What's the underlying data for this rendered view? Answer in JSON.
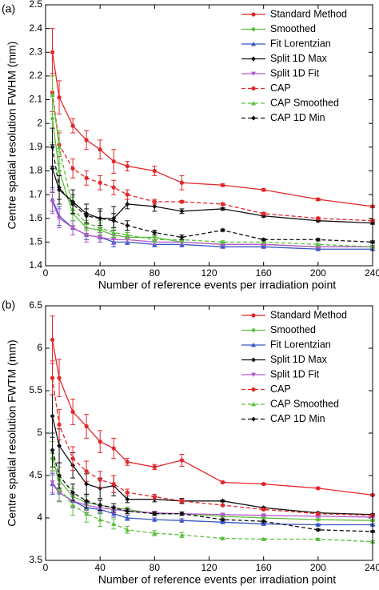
{
  "chart_data": [
    {
      "type": "line",
      "panel_label": "(a)",
      "xlabel": "Number of reference events per irradiation point",
      "ylabel": "Centre spatial resolution FWHM (mm)",
      "x": [
        5,
        10,
        20,
        30,
        40,
        50,
        60,
        80,
        100,
        130,
        160,
        200,
        240
      ],
      "xlim": [
        0,
        240
      ],
      "xticks": [
        0,
        40,
        80,
        120,
        160,
        200,
        240
      ],
      "ylim": [
        1.4,
        2.5
      ],
      "yticks": [
        1.4,
        1.5,
        1.6,
        1.7,
        1.8,
        1.9,
        2,
        2.1,
        2.2,
        2.3,
        2.4,
        2.5
      ],
      "legend": "upper right",
      "series": [
        {
          "name": "Standard Method",
          "color": "#e3262b",
          "dash": false,
          "marker": "circle",
          "values": [
            2.3,
            2.11,
            1.99,
            1.93,
            1.89,
            1.84,
            1.82,
            1.8,
            1.75,
            1.74,
            1.72,
            1.68,
            1.65
          ],
          "errors": [
            0.1,
            0.07,
            0.03,
            0.04,
            0.04,
            0.05,
            0.02,
            0.02,
            0.03,
            0.005,
            0.005,
            0.005,
            0.005
          ]
        },
        {
          "name": "Smoothed",
          "color": "#5cbf3c",
          "dash": false,
          "marker": "diamond",
          "values": [
            2.02,
            1.8,
            1.62,
            1.56,
            1.55,
            1.53,
            1.52,
            1.52,
            1.5,
            1.49,
            1.49,
            1.48,
            1.48
          ],
          "errors": [
            0.1,
            0.08,
            0.05,
            0.03,
            0.03,
            0.02,
            0.02,
            0.02,
            0.01,
            0.005,
            0.005,
            0.005,
            0.005
          ]
        },
        {
          "name": "Fit Lorentzian",
          "color": "#3a55c4",
          "dash": false,
          "marker": "triangle",
          "values": [
            1.68,
            1.61,
            1.56,
            1.53,
            1.52,
            1.5,
            1.5,
            1.49,
            1.49,
            1.48,
            1.48,
            1.47,
            1.47
          ],
          "errors": [
            0.05,
            0.04,
            0.03,
            0.02,
            0.02,
            0.02,
            0.01,
            0.01,
            0.01,
            0.005,
            0.005,
            0.005,
            0.005
          ]
        },
        {
          "name": "Split 1D Max",
          "color": "#111111",
          "dash": false,
          "marker": "diamond",
          "values": [
            1.81,
            1.72,
            1.67,
            1.62,
            1.6,
            1.6,
            1.66,
            1.65,
            1.63,
            1.64,
            1.61,
            1.59,
            1.58
          ],
          "errors": [
            0.1,
            0.06,
            0.05,
            0.04,
            0.04,
            0.05,
            0.02,
            0.02,
            0.01,
            0.005,
            0.005,
            0.005,
            0.005
          ]
        },
        {
          "name": "Split 1D Fit",
          "color": "#b45acd",
          "dash": false,
          "marker": "triangle-down",
          "values": [
            1.67,
            1.6,
            1.56,
            1.53,
            1.52,
            1.51,
            1.51,
            1.5,
            1.5,
            1.49,
            1.49,
            1.48,
            1.48
          ],
          "errors": [
            0.05,
            0.04,
            0.03,
            0.03,
            0.02,
            0.02,
            0.01,
            0.01,
            0.01,
            0.005,
            0.005,
            0.005,
            0.005
          ]
        },
        {
          "name": "CAP",
          "color": "#e3262b",
          "dash": true,
          "marker": "circle",
          "values": [
            2.13,
            1.91,
            1.81,
            1.77,
            1.75,
            1.73,
            1.7,
            1.67,
            1.67,
            1.66,
            1.62,
            1.6,
            1.59
          ],
          "errors": [
            0.08,
            0.05,
            0.04,
            0.03,
            0.03,
            0.03,
            0.02,
            0.01,
            0.005,
            0.005,
            0.005,
            0.005,
            0.005
          ]
        },
        {
          "name": "CAP Smoothed",
          "color": "#5cbf3c",
          "dash": true,
          "marker": "triangle",
          "values": [
            2.12,
            1.9,
            1.64,
            1.58,
            1.56,
            1.54,
            1.53,
            1.51,
            1.51,
            1.5,
            1.5,
            1.49,
            1.48
          ],
          "errors": [
            0.08,
            0.07,
            0.05,
            0.03,
            0.03,
            0.02,
            0.02,
            0.01,
            0.01,
            0.005,
            0.005,
            0.005,
            0.005
          ]
        },
        {
          "name": "CAP 1D Min",
          "color": "#111111",
          "dash": true,
          "marker": "diamond",
          "values": [
            1.9,
            1.73,
            1.66,
            1.61,
            1.6,
            1.59,
            1.57,
            1.54,
            1.52,
            1.55,
            1.51,
            1.51,
            1.5
          ],
          "errors": [
            0.08,
            0.05,
            0.04,
            0.03,
            0.03,
            0.03,
            0.02,
            0.01,
            0.01,
            0.005,
            0.005,
            0.005,
            0.005
          ]
        }
      ]
    },
    {
      "type": "line",
      "panel_label": "(b)",
      "xlabel": "Number of reference events per irradiation point",
      "ylabel": "Centre spatial resolution FWTM (mm)",
      "x": [
        5,
        10,
        20,
        30,
        40,
        50,
        60,
        80,
        100,
        130,
        160,
        200,
        240
      ],
      "xlim": [
        0,
        240
      ],
      "xticks": [
        0,
        40,
        80,
        120,
        160,
        200,
        240
      ],
      "ylim": [
        3.5,
        6.5
      ],
      "yticks": [
        3.5,
        4,
        4.5,
        5,
        5.5,
        6,
        6.5
      ],
      "legend": "upper right",
      "series": [
        {
          "name": "Standard Method",
          "color": "#e3262b",
          "dash": false,
          "marker": "circle",
          "values": [
            6.1,
            5.65,
            5.25,
            5.08,
            4.9,
            4.82,
            4.66,
            4.6,
            4.68,
            4.42,
            4.4,
            4.35,
            4.27
          ],
          "errors": [
            0.28,
            0.22,
            0.15,
            0.14,
            0.13,
            0.12,
            0.04,
            0.03,
            0.07,
            0.01,
            0.01,
            0.01,
            0.01
          ]
        },
        {
          "name": "Smoothed",
          "color": "#5cbf3c",
          "dash": false,
          "marker": "diamond",
          "values": [
            4.7,
            4.45,
            4.25,
            4.18,
            4.15,
            4.12,
            4.1,
            4.05,
            4.05,
            4.02,
            4.0,
            3.98,
            3.97
          ],
          "errors": [
            0.2,
            0.15,
            0.1,
            0.08,
            0.06,
            0.05,
            0.03,
            0.02,
            0.02,
            0.01,
            0.01,
            0.01,
            0.01
          ]
        },
        {
          "name": "Fit Lorentzian",
          "color": "#3a55c4",
          "dash": false,
          "marker": "triangle",
          "values": [
            4.4,
            4.3,
            4.2,
            4.12,
            4.1,
            4.05,
            4.0,
            3.98,
            3.97,
            3.95,
            3.93,
            3.92,
            3.92
          ],
          "errors": [
            0.12,
            0.1,
            0.08,
            0.06,
            0.05,
            0.04,
            0.03,
            0.02,
            0.02,
            0.01,
            0.01,
            0.01,
            0.01
          ]
        },
        {
          "name": "Split 1D Max",
          "color": "#111111",
          "dash": false,
          "marker": "diamond",
          "values": [
            5.2,
            4.85,
            4.62,
            4.4,
            4.35,
            4.38,
            4.22,
            4.22,
            4.2,
            4.2,
            4.12,
            4.06,
            4.04
          ],
          "errors": [
            0.25,
            0.2,
            0.15,
            0.12,
            0.12,
            0.12,
            0.04,
            0.03,
            0.03,
            0.01,
            0.01,
            0.01,
            0.01
          ]
        },
        {
          "name": "Split 1D Fit",
          "color": "#b45acd",
          "dash": false,
          "marker": "triangle-down",
          "values": [
            4.42,
            4.3,
            4.2,
            4.15,
            4.12,
            4.1,
            4.08,
            4.06,
            4.05,
            4.04,
            4.03,
            4.02,
            4.01
          ],
          "errors": [
            0.12,
            0.1,
            0.08,
            0.06,
            0.05,
            0.04,
            0.03,
            0.02,
            0.02,
            0.01,
            0.01,
            0.01,
            0.01
          ]
        },
        {
          "name": "CAP",
          "color": "#e3262b",
          "dash": true,
          "marker": "circle",
          "values": [
            5.65,
            5.1,
            4.7,
            4.55,
            4.45,
            4.4,
            4.3,
            4.25,
            4.2,
            4.15,
            4.1,
            4.05,
            4.03
          ],
          "errors": [
            0.2,
            0.18,
            0.14,
            0.12,
            0.1,
            0.1,
            0.04,
            0.03,
            0.02,
            0.01,
            0.01,
            0.01,
            0.01
          ]
        },
        {
          "name": "CAP Smoothed",
          "color": "#5cbf3c",
          "dash": true,
          "marker": "triangle",
          "values": [
            4.78,
            4.35,
            4.15,
            4.05,
            3.98,
            3.93,
            3.86,
            3.82,
            3.8,
            3.76,
            3.75,
            3.75,
            3.72
          ],
          "errors": [
            0.22,
            0.16,
            0.12,
            0.1,
            0.08,
            0.06,
            0.04,
            0.03,
            0.03,
            0.01,
            0.01,
            0.01,
            0.01
          ]
        },
        {
          "name": "CAP 1D Min",
          "color": "#111111",
          "dash": true,
          "marker": "diamond",
          "values": [
            4.8,
            4.5,
            4.3,
            4.2,
            4.15,
            4.12,
            4.08,
            4.05,
            4.05,
            3.98,
            3.96,
            3.86,
            3.84
          ],
          "errors": [
            0.2,
            0.15,
            0.1,
            0.08,
            0.06,
            0.05,
            0.03,
            0.02,
            0.02,
            0.01,
            0.01,
            0.01,
            0.01
          ]
        }
      ]
    }
  ]
}
